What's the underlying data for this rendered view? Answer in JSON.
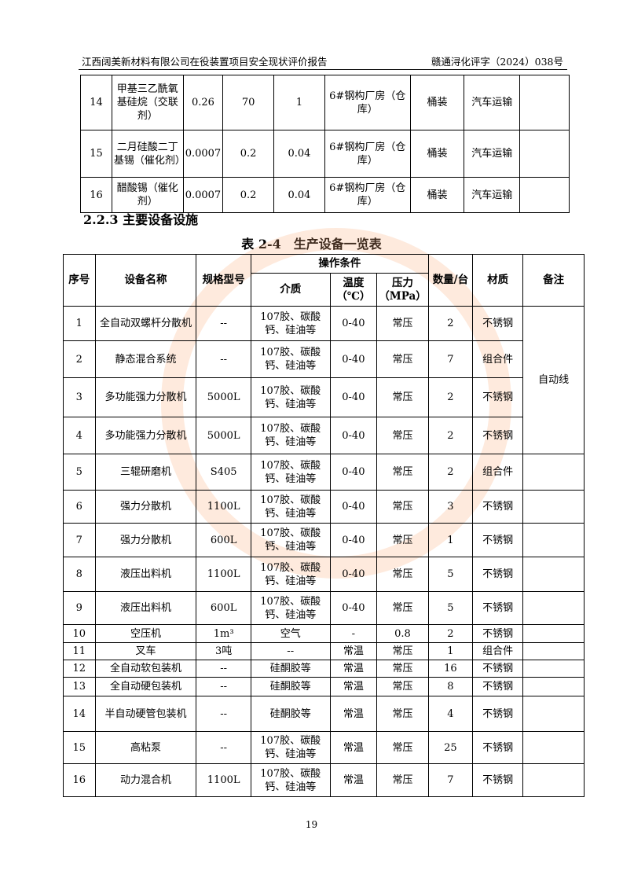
{
  "header": {
    "left": "江西阔美新材料有限公司在役装置项目安全现状评价报告",
    "right": "赣通浔化评字（2024）038号"
  },
  "table1": {
    "rows": [
      [
        "14",
        "甲基三乙酰氧基硅烷（交联剂）",
        "0.26",
        "70",
        "1",
        "6#钢构厂房（仓库）",
        "桶装",
        "汽车运输",
        ""
      ],
      [
        "15",
        "二月硅酸二丁基锡（催化剂）",
        "0.0007",
        "0.2",
        "0.04",
        "6#钢构厂房（仓库）",
        "桶装",
        "汽车运输",
        ""
      ],
      [
        "16",
        "醋酸锡（催化剂）",
        "0.0007",
        "0.2",
        "0.04",
        "6#钢构厂房（仓库）",
        "桶装",
        "汽车运输",
        ""
      ]
    ]
  },
  "section_title": "2.2.3 主要设备设施",
  "table_caption": "表 2-4　生产设备一览表",
  "table2": {
    "headers": {
      "no": "序号",
      "name": "设备名称",
      "spec": "规格型号",
      "op": "操作条件",
      "medium": "介质",
      "temp": "温度（℃）",
      "pressure": "压力（MPa）",
      "qty": "数量/台",
      "material": "材质",
      "remark": "备注"
    },
    "remark_merged": "自动线",
    "rows": [
      [
        "1",
        "全自动双螺杆分散机",
        "--",
        "107胶、碳酸钙、硅油等",
        "0-40",
        "常压",
        "2",
        "不锈钢"
      ],
      [
        "2",
        "静态混合系统",
        "--",
        "107胶、碳酸钙、硅油等",
        "0-40",
        "常压",
        "7",
        "组合件"
      ],
      [
        "3",
        "多功能强力分散机",
        "5000L",
        "107胶、碳酸钙、硅油等",
        "0-40",
        "常压",
        "2",
        "不锈钢"
      ],
      [
        "4",
        "多功能强力分散机",
        "5000L",
        "107胶、碳酸钙、硅油等",
        "0-40",
        "常压",
        "2",
        "不锈钢"
      ],
      [
        "5",
        "三辊研磨机",
        "S405",
        "107胶、碳酸钙、硅油等",
        "0-40",
        "常压",
        "2",
        "组合件"
      ],
      [
        "6",
        "强力分散机",
        "1100L",
        "107胶、碳酸钙、硅油等",
        "0-40",
        "常压",
        "3",
        "不锈钢"
      ],
      [
        "7",
        "强力分散机",
        "600L",
        "107胶、碳酸钙、硅油等",
        "0-40",
        "常压",
        "1",
        "不锈钢"
      ],
      [
        "8",
        "液压出料机",
        "1100L",
        "107胶、碳酸钙、硅油等",
        "0-40",
        "常压",
        "5",
        "不锈钢"
      ],
      [
        "9",
        "液压出料机",
        "600L",
        "107胶、碳酸钙、硅油等",
        "0-40",
        "常压",
        "5",
        "不锈钢"
      ],
      [
        "10",
        "空压机",
        "1m³",
        "空气",
        "-",
        "0.8",
        "2",
        "不锈钢"
      ],
      [
        "11",
        "叉车",
        "3吨",
        "--",
        "常温",
        "常压",
        "1",
        "组合件"
      ],
      [
        "12",
        "全自动软包装机",
        "--",
        "硅酮胶等",
        "常温",
        "常压",
        "16",
        "不锈钢"
      ],
      [
        "13",
        "全自动硬包装机",
        "--",
        "硅酮胶等",
        "常温",
        "常压",
        "8",
        "不锈钢"
      ],
      [
        "14",
        "半自动硬管包装机",
        "--",
        "硅酮胶等",
        "常温",
        "常压",
        "4",
        "不锈钢"
      ],
      [
        "15",
        "高粘泵",
        "--",
        "107胶、碳酸钙、硅油等",
        "常温",
        "常压",
        "25",
        "不锈钢"
      ],
      [
        "16",
        "动力混合机",
        "1100L",
        "107胶、碳酸钙、硅油等",
        "常温",
        "常压",
        "7",
        "不锈钢"
      ]
    ]
  },
  "page_number": "19"
}
